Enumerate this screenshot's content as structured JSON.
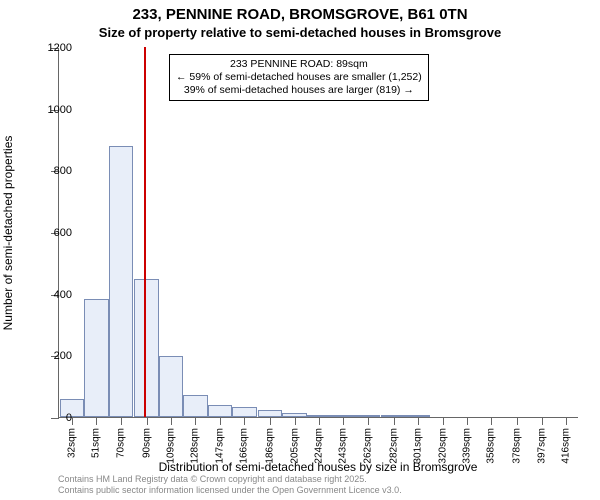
{
  "title": "233, PENNINE ROAD, BROMSGROVE, B61 0TN",
  "subtitle": "Size of property relative to semi-detached houses in Bromsgrove",
  "chart": {
    "type": "histogram",
    "ylabel": "Number of semi-detached properties",
    "xlabel": "Distribution of semi-detached houses by size in Bromsgrove",
    "ylim": [
      0,
      1200
    ],
    "ytick_step": 200,
    "yticks": [
      0,
      200,
      400,
      600,
      800,
      1000,
      1200
    ],
    "xtick_labels": [
      "32sqm",
      "51sqm",
      "70sqm",
      "90sqm",
      "109sqm",
      "128sqm",
      "147sqm",
      "166sqm",
      "186sqm",
      "205sqm",
      "224sqm",
      "243sqm",
      "262sqm",
      "282sqm",
      "301sqm",
      "320sqm",
      "339sqm",
      "358sqm",
      "378sqm",
      "397sqm",
      "416sqm"
    ],
    "bars": [
      {
        "x": 32,
        "value": 60
      },
      {
        "x": 51,
        "value": 382
      },
      {
        "x": 70,
        "value": 878
      },
      {
        "x": 90,
        "value": 448
      },
      {
        "x": 109,
        "value": 198
      },
      {
        "x": 128,
        "value": 70
      },
      {
        "x": 147,
        "value": 40
      },
      {
        "x": 166,
        "value": 32
      },
      {
        "x": 186,
        "value": 22
      },
      {
        "x": 205,
        "value": 14
      },
      {
        "x": 224,
        "value": 8
      },
      {
        "x": 243,
        "value": 6
      },
      {
        "x": 262,
        "value": 8
      },
      {
        "x": 282,
        "value": 2
      },
      {
        "x": 301,
        "value": 1
      },
      {
        "x": 320,
        "value": 0
      },
      {
        "x": 339,
        "value": 0
      },
      {
        "x": 358,
        "value": 0
      },
      {
        "x": 378,
        "value": 0
      },
      {
        "x": 397,
        "value": 0
      },
      {
        "x": 416,
        "value": 0
      }
    ],
    "bar_fill": "#e8eef9",
    "bar_border": "#7a8db5",
    "background": "#ffffff",
    "axis_color": "#666666",
    "marker": {
      "x": 89,
      "color": "#cc0000",
      "width": 2
    },
    "annotation": {
      "line1": "233 PENNINE ROAD: 89sqm",
      "line2": "← 59% of semi-detached houses are smaller (1,252)",
      "line3": "39% of semi-detached houses are larger (819) →",
      "border_color": "#000000",
      "bg_color": "#ffffff",
      "fontsize": 10.5
    },
    "label_fontsize": 12,
    "tick_fontsize": 11,
    "xtick_fontsize": 10,
    "x_range": [
      22,
      426
    ]
  },
  "footer": {
    "line1": "Contains HM Land Registry data © Crown copyright and database right 2025.",
    "line2": "Contains public sector information licensed under the Open Government Licence v3.0.",
    "color": "#888888",
    "fontsize": 9
  }
}
